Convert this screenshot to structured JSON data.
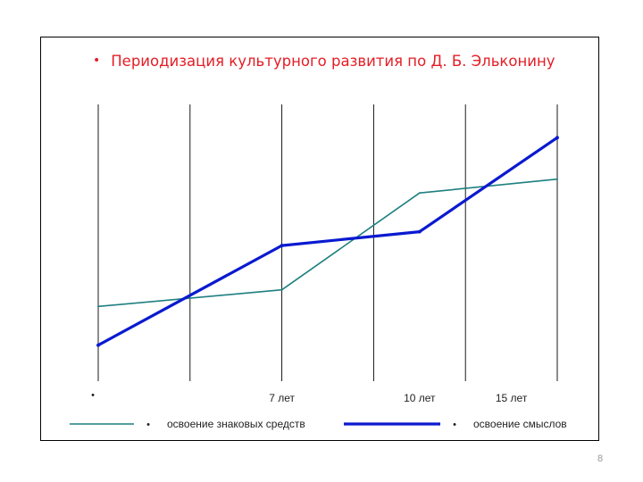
{
  "slide": {
    "title": "Периодизация культурного развития  по Д. Б. Эльконину",
    "title_color": "#e41e26",
    "page_number": "8"
  },
  "chart_data": {
    "type": "line",
    "title": "Периодизация культурного развития  по Д. Б. Эльконину",
    "x_positions": [
      1,
      2,
      3,
      4,
      5,
      6
    ],
    "tick_labels": [
      {
        "x": 1,
        "text": ""
      },
      {
        "x": 3,
        "text": "7 лет"
      },
      {
        "x": 4.5,
        "text": "10 лет"
      },
      {
        "x": 5.5,
        "text": "15 лет"
      }
    ],
    "ylim": [
      0,
      100
    ],
    "grid": "vertical",
    "legend_position": "bottom",
    "series": [
      {
        "name": "освоение знаковых средств",
        "color": "#1e7f80",
        "x": [
          1,
          3,
          4.5,
          6
        ],
        "values": [
          27,
          33,
          68,
          73
        ]
      },
      {
        "name": "освоение смыслов",
        "color": "#0a1ad0",
        "x": [
          1,
          3,
          4.5,
          6
        ],
        "values": [
          13,
          49,
          54,
          88
        ]
      }
    ]
  }
}
